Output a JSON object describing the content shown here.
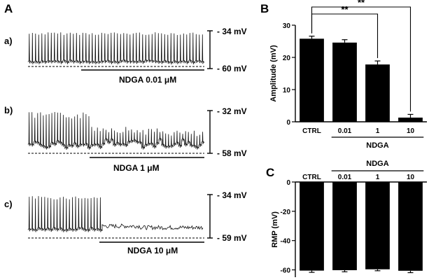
{
  "panel_labels": {
    "a": "A",
    "b": "B",
    "c": "C"
  },
  "traces": [
    {
      "row": "a)",
      "top_label": "- 34 mV",
      "bottom_label": "- 60 mV",
      "drug_label": "NDGA 0.01 μM"
    },
    {
      "row": "b)",
      "top_label": "- 32 mV",
      "bottom_label": "- 58 mV",
      "drug_label": "NDGA 1 μM"
    },
    {
      "row": "c)",
      "top_label": "- 34 mV",
      "bottom_label": "- 59 mV",
      "drug_label": "NDGA 10 μM"
    }
  ],
  "chart_data": [
    {
      "type": "bar",
      "panel": "B",
      "categories": [
        "CTRL",
        "0.01",
        "1",
        "10"
      ],
      "group_label": "NDGA",
      "values": [
        25.8,
        24.6,
        17.8,
        1.3
      ],
      "errors": [
        0.8,
        0.9,
        1.1,
        1.0
      ],
      "ylabel": "Amplitude (mV)",
      "ylim": [
        0,
        30
      ],
      "yticks": [
        "0",
        "10",
        "20",
        "30"
      ],
      "significance": [
        {
          "from": "CTRL",
          "to": "1",
          "label": "**"
        },
        {
          "from": "CTRL",
          "to": "10",
          "label": "**"
        }
      ]
    },
    {
      "type": "bar",
      "panel": "C",
      "categories": [
        "CTRL",
        "0.01",
        "1",
        "10"
      ],
      "group_label": "NDGA",
      "values": [
        -60.5,
        -60.2,
        -59.6,
        -60.6
      ],
      "errors": [
        1.2,
        1.1,
        1.0,
        1.3
      ],
      "ylabel": "RMP  (mV)",
      "ylim": [
        -65,
        0
      ],
      "yticks": [
        "0",
        "-20",
        "-40",
        "-60"
      ]
    }
  ]
}
